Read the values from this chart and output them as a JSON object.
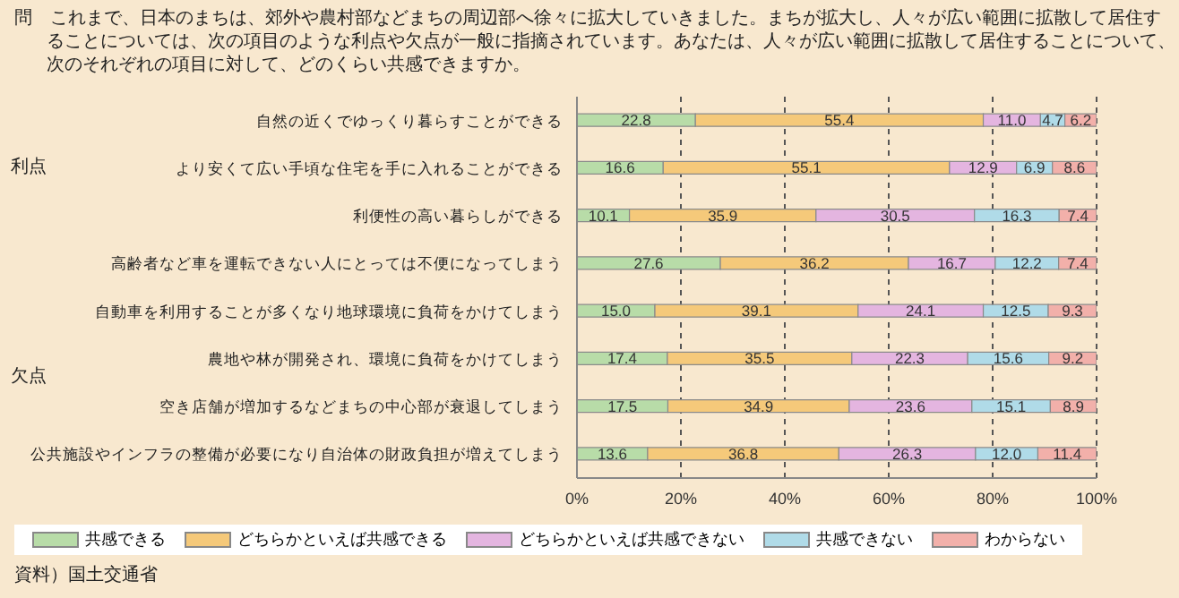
{
  "chart_data": {
    "type": "bar",
    "orientation": "horizontal",
    "stacked": true,
    "title": "問　これまで、日本のまちは、郊外や農村部などまちの周辺部へ徐々に拡大していきました。まちが拡大し、人々が広い範囲に拡散して居住することについては、次の項目のような利点や欠点が一般に指摘されています。あなたは、人々が広い範囲に拡散して居住することについて、次のそれぞれの項目に対して、どのくらい共感できますか。",
    "categories": [
      "自然の近くでゆっくり暮らすことができる",
      "より安くて広い手頃な住宅を手に入れることができる",
      "利便性の高い暮らしができる",
      "高齢者など車を運転できない人にとっては不便になってしまう",
      "自動車を利用することが多くなり地球環境に負荷をかけてしまう",
      "農地や林が開発され、環境に負荷をかけてしまう",
      "空き店舗が増加するなどまちの中心部が衰退してしまう",
      "公共施設やインフラの整備が必要になり自治体の財政負担が増えてしまう"
    ],
    "series": [
      {
        "name": "共感できる",
        "color": "#b8dca8",
        "values": [
          22.8,
          16.6,
          10.1,
          27.6,
          15.0,
          17.4,
          17.5,
          13.6
        ],
        "value_labels": [
          "22.8",
          "16.6",
          "10.1",
          "27.6",
          "15.0",
          "17.4",
          "17.5",
          "13.6"
        ]
      },
      {
        "name": "どちらかといえば共感できる",
        "color": "#f5c97a",
        "values": [
          55.4,
          55.1,
          35.9,
          36.2,
          39.1,
          35.5,
          34.9,
          36.8
        ],
        "value_labels": [
          "55.4",
          "55.1",
          "35.9",
          "36.2",
          "39.1",
          "35.5",
          "34.9",
          "36.8"
        ]
      },
      {
        "name": "どちらかといえば共感できない",
        "color": "#e4b5e0",
        "values": [
          11.0,
          12.9,
          30.5,
          16.7,
          24.1,
          22.3,
          23.6,
          26.3
        ],
        "value_labels": [
          "11.0",
          "12.9",
          "30.5",
          "16.7",
          "24.1",
          "22.3",
          "23.6",
          "26.3"
        ]
      },
      {
        "name": "共感できない",
        "color": "#b0dbe8",
        "values": [
          4.7,
          6.9,
          16.3,
          12.2,
          12.5,
          15.6,
          15.1,
          12.0
        ],
        "value_labels": [
          "4.7",
          "6.9",
          "16.3",
          "12.2",
          "12.5",
          "15.6",
          "15.1",
          "12.0"
        ]
      },
      {
        "name": "わからない",
        "color": "#f2b0aa",
        "values": [
          6.2,
          8.6,
          7.4,
          7.4,
          9.3,
          9.2,
          8.9,
          11.4
        ],
        "value_labels": [
          "6.2",
          "8.6",
          "7.4",
          "7.4",
          "9.3",
          "9.2",
          "8.9",
          "11.4"
        ]
      }
    ],
    "xlim": [
      0,
      100
    ],
    "xticks": [
      {
        "value": 0,
        "label": "0%"
      },
      {
        "value": 20,
        "label": "20%"
      },
      {
        "value": 40,
        "label": "40%"
      },
      {
        "value": 60,
        "label": "60%"
      },
      {
        "value": 80,
        "label": "80%"
      },
      {
        "value": 100,
        "label": "100%"
      }
    ],
    "grid": "x",
    "legend": "bottom",
    "annotations": [
      "利点",
      "欠点",
      "資料）国土交通省"
    ]
  }
}
